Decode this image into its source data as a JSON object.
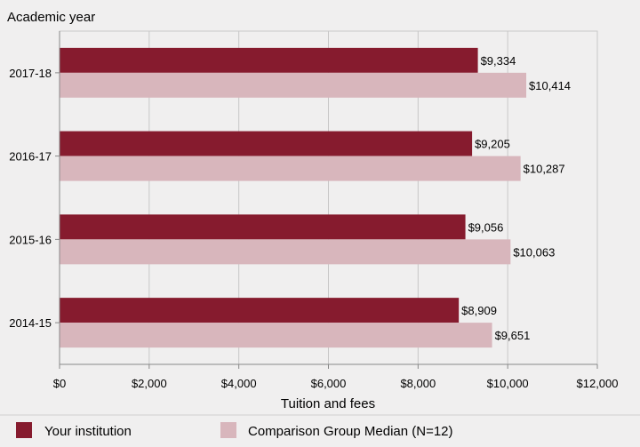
{
  "chart_data": {
    "type": "bar",
    "orientation": "horizontal",
    "ylabel": "Academic year",
    "xlabel": "Tuition and fees",
    "categories": [
      "2017-18",
      "2016-17",
      "2015-16",
      "2014-15"
    ],
    "series": [
      {
        "name": "Your institution",
        "color": "#861b2e",
        "values": [
          9334,
          9205,
          9056,
          8909
        ],
        "labels": [
          "$9,334",
          "$9,205",
          "$9,056",
          "$8,909"
        ]
      },
      {
        "name": "Comparison Group Median (N=12)",
        "color": "#d8b6bc",
        "values": [
          10414,
          10287,
          10063,
          9651
        ],
        "labels": [
          "$10,414",
          "$10,287",
          "$10,063",
          "$9,651"
        ]
      }
    ],
    "xlim": [
      0,
      12000
    ],
    "xticks": [
      0,
      2000,
      4000,
      6000,
      8000,
      10000,
      12000
    ],
    "xtick_labels": [
      "$0",
      "$2,000",
      "$4,000",
      "$6,000",
      "$8,000",
      "$10,000",
      "$12,000"
    ],
    "grid": true,
    "legend_position": "bottom",
    "colors": {
      "background": "#f0efef",
      "plot_background": "#f0efef",
      "grid": "#c8c8c8",
      "axis": "#888888",
      "text": "#000000"
    }
  }
}
